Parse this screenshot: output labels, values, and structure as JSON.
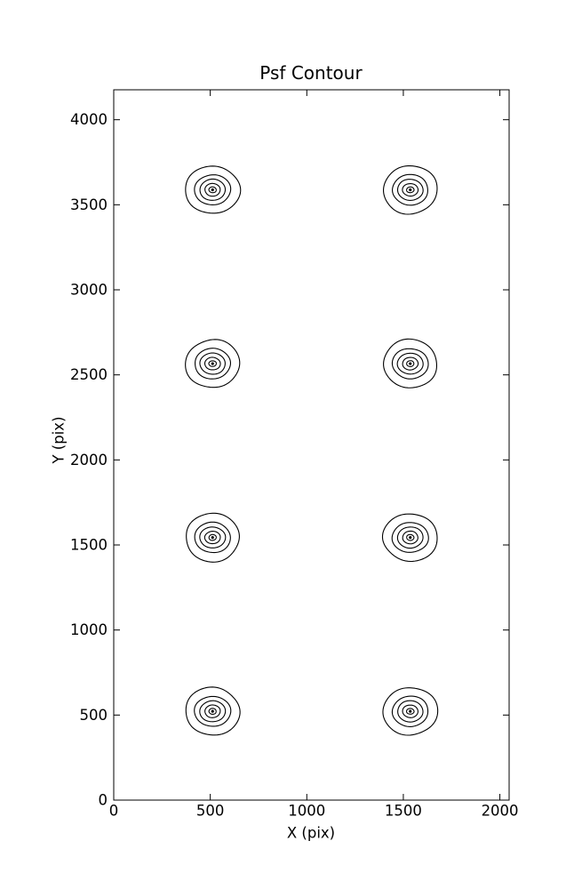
{
  "chart_data": {
    "type": "contour",
    "title": "Psf Contour",
    "xlabel": "X (pix)",
    "ylabel": "Y (pix)",
    "xlim": [
      0,
      2048
    ],
    "ylim": [
      0,
      4176
    ],
    "xticks": [
      0,
      500,
      1000,
      1500,
      2000
    ],
    "yticks": [
      0,
      500,
      1000,
      1500,
      2000,
      2500,
      3000,
      3500,
      4000
    ],
    "grid": false,
    "legend": null,
    "line_color": "#000000",
    "background_color": "#ffffff",
    "psf_centers": [
      {
        "x": 512,
        "y": 522
      },
      {
        "x": 1536,
        "y": 522
      },
      {
        "x": 512,
        "y": 1544
      },
      {
        "x": 1536,
        "y": 1544
      },
      {
        "x": 512,
        "y": 2566
      },
      {
        "x": 1536,
        "y": 2566
      },
      {
        "x": 512,
        "y": 3588
      },
      {
        "x": 1536,
        "y": 3588
      }
    ],
    "ring_radii_x": [
      140,
      93,
      66,
      40,
      19,
      5.5
    ],
    "ring_radii_y": [
      141,
      89,
      62,
      37,
      17,
      4.5
    ],
    "rings_per_psf": 6
  }
}
